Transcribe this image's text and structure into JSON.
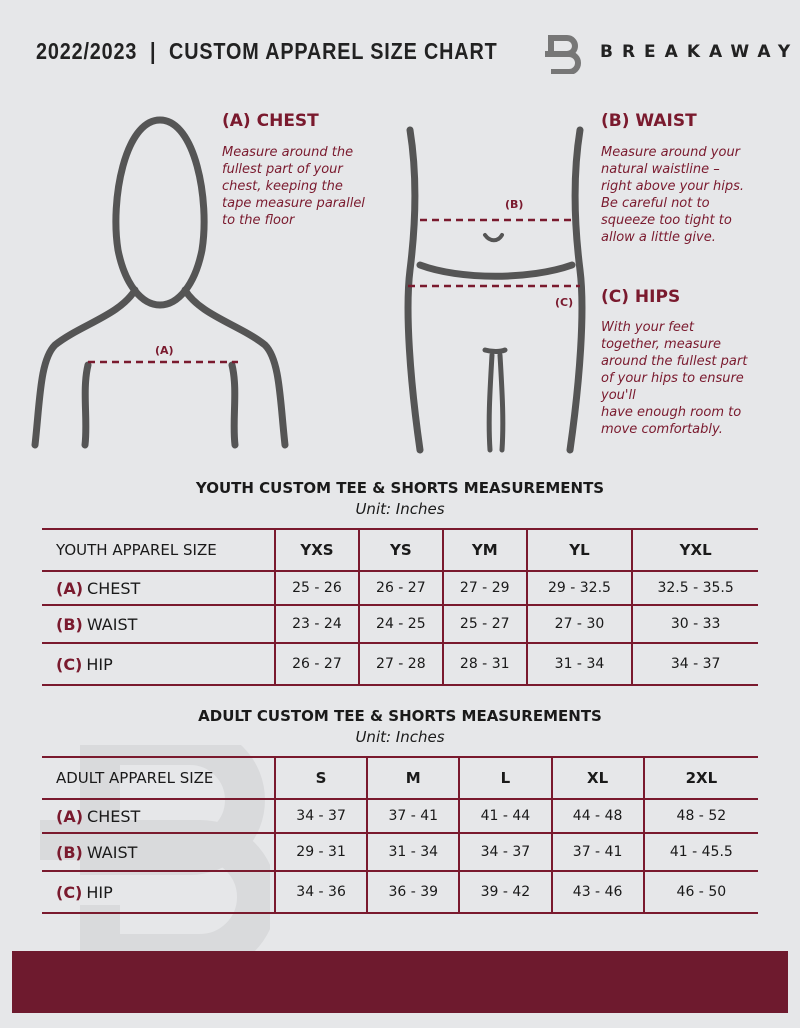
{
  "header": {
    "title": "2022/2023  |  CUSTOM APPAREL SIZE CHART",
    "brand": "BREAKAWAY",
    "logo_letter": "B"
  },
  "guide": {
    "chest": {
      "heading": "(A) CHEST",
      "text": [
        "Measure around the",
        "fullest part of your",
        "chest, keeping the",
        "tape measure parallel",
        "to the floor"
      ],
      "marker": "(A)"
    },
    "waist": {
      "heading": "(B) WAIST",
      "text": [
        "Measure around your",
        "natural waistline –",
        "right above your hips.",
        "Be careful not to",
        "squeeze too tight to",
        "allow a little give."
      ],
      "marker": "(B)"
    },
    "hips": {
      "heading": "(C) HIPS",
      "text": [
        "With your feet",
        "together, measure",
        "around the fullest part",
        "of your hips to ensure",
        "you'll",
        "have enough room to",
        "move comfortably."
      ],
      "marker": "(C)"
    }
  },
  "youth": {
    "title": "YOUTH CUSTOM TEE & SHORTS MEASUREMENTS",
    "unit": "Unit: Inches",
    "header": "YOUTH APPAREL SIZE",
    "sizes": [
      "YXS",
      "YS",
      "YM",
      "YL",
      "YXL"
    ],
    "rows": [
      {
        "letter": "(A)",
        "name": "CHEST",
        "values": [
          "25 - 26",
          "26 - 27",
          "27 - 29",
          "29 - 32.5",
          "32.5 - 35.5"
        ]
      },
      {
        "letter": "(B)",
        "name": "WAIST",
        "values": [
          "23 - 24",
          "24 - 25",
          "25 - 27",
          "27 - 30",
          "30 - 33"
        ]
      },
      {
        "letter": "(C)",
        "name": "HIP",
        "values": [
          "26 - 27",
          "27 - 28",
          "28 - 31",
          "31 - 34",
          "34 - 37"
        ]
      }
    ]
  },
  "adult": {
    "title": "ADULT CUSTOM TEE & SHORTS MEASUREMENTS",
    "unit": "Unit: Inches",
    "header": "ADULT APPAREL SIZE",
    "sizes": [
      "S",
      "M",
      "L",
      "XL",
      "2XL"
    ],
    "rows": [
      {
        "letter": "(A)",
        "name": "CHEST",
        "values": [
          "34 - 37",
          "37 - 41",
          "41 - 44",
          "44 - 48",
          "48 - 52"
        ]
      },
      {
        "letter": "(B)",
        "name": "WAIST",
        "values": [
          "29 - 31",
          "31 - 34",
          "34 - 37",
          "37 - 41",
          "41 - 45.5"
        ]
      },
      {
        "letter": "(C)",
        "name": "HIP",
        "values": [
          "34 - 36",
          "36 - 39",
          "39 - 42",
          "43 - 46",
          "46 - 50"
        ]
      }
    ]
  },
  "colors": {
    "accent": "#7a1a2e",
    "background": "#e6e7e9",
    "footer": "#6e1a2e"
  }
}
